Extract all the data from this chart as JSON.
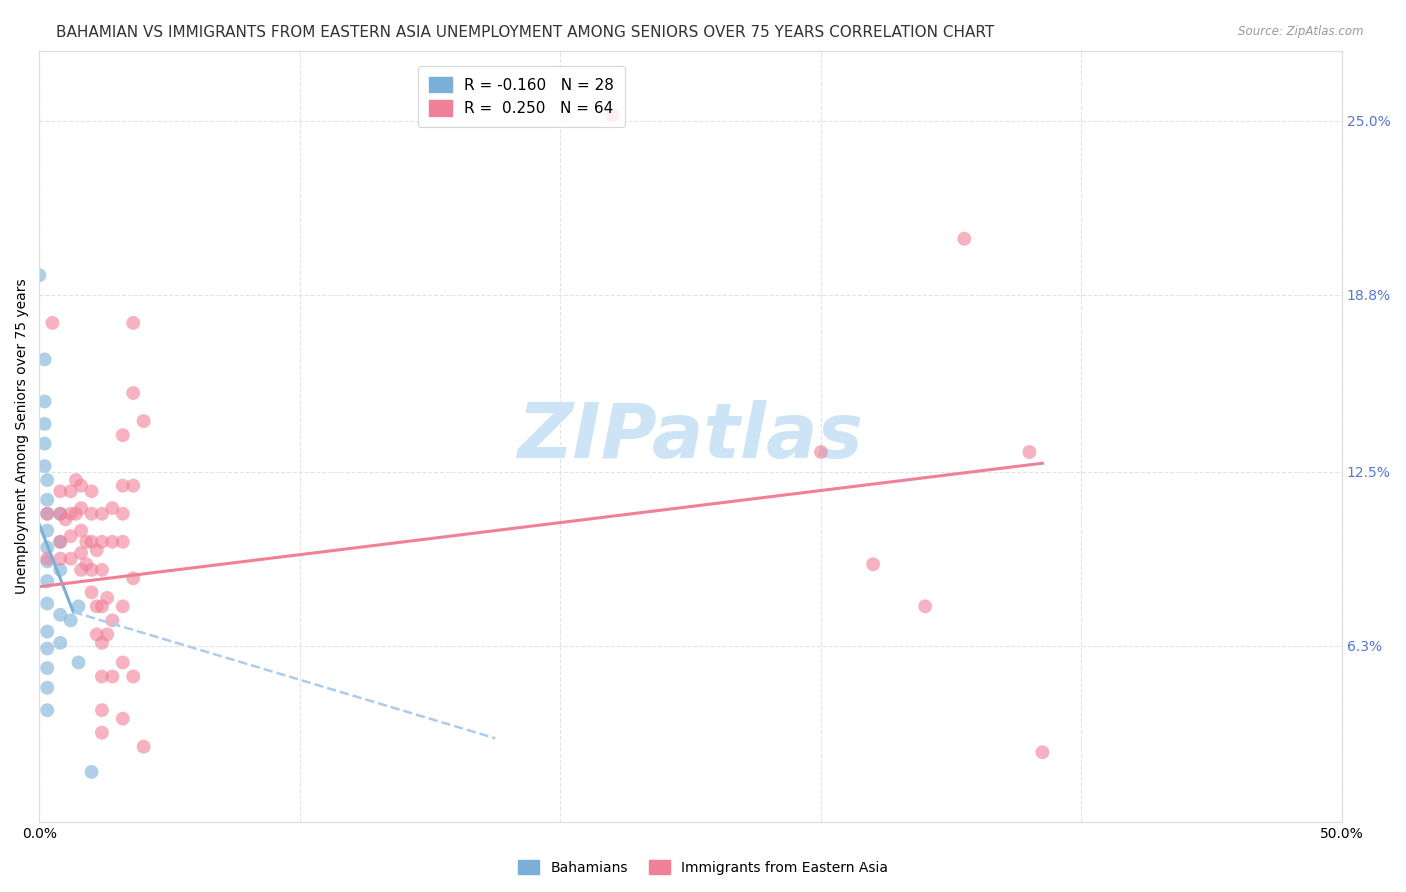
{
  "title": "BAHAMIAN VS IMMIGRANTS FROM EASTERN ASIA UNEMPLOYMENT AMONG SENIORS OVER 75 YEARS CORRELATION CHART",
  "source": "Source: ZipAtlas.com",
  "ylabel": "Unemployment Among Seniors over 75 years",
  "xlim": [
    0.0,
    0.5
  ],
  "ylim": [
    0.0,
    0.275
  ],
  "xticks": [
    0.0,
    0.1,
    0.2,
    0.3,
    0.4,
    0.5
  ],
  "xtick_labels": [
    "0.0%",
    "",
    "",
    "",
    "",
    "50.0%"
  ],
  "ytick_positions": [
    0.063,
    0.125,
    0.188,
    0.25
  ],
  "ytick_labels": [
    "6.3%",
    "12.5%",
    "18.8%",
    "25.0%"
  ],
  "bahamian_color": "#7ab0d8",
  "eastern_asia_color": "#f08098",
  "bahamian_scatter": [
    [
      0.0,
      0.195
    ],
    [
      0.002,
      0.165
    ],
    [
      0.002,
      0.15
    ],
    [
      0.002,
      0.142
    ],
    [
      0.002,
      0.135
    ],
    [
      0.002,
      0.127
    ],
    [
      0.003,
      0.122
    ],
    [
      0.003,
      0.115
    ],
    [
      0.003,
      0.11
    ],
    [
      0.003,
      0.104
    ],
    [
      0.003,
      0.098
    ],
    [
      0.003,
      0.093
    ],
    [
      0.003,
      0.086
    ],
    [
      0.003,
      0.078
    ],
    [
      0.003,
      0.068
    ],
    [
      0.003,
      0.062
    ],
    [
      0.003,
      0.055
    ],
    [
      0.003,
      0.048
    ],
    [
      0.003,
      0.04
    ],
    [
      0.008,
      0.11
    ],
    [
      0.008,
      0.1
    ],
    [
      0.008,
      0.09
    ],
    [
      0.008,
      0.074
    ],
    [
      0.008,
      0.064
    ],
    [
      0.012,
      0.072
    ],
    [
      0.015,
      0.077
    ],
    [
      0.015,
      0.057
    ],
    [
      0.02,
      0.018
    ]
  ],
  "eastern_asia_scatter": [
    [
      0.003,
      0.11
    ],
    [
      0.003,
      0.094
    ],
    [
      0.005,
      0.178
    ],
    [
      0.008,
      0.118
    ],
    [
      0.008,
      0.11
    ],
    [
      0.008,
      0.1
    ],
    [
      0.008,
      0.094
    ],
    [
      0.01,
      0.108
    ],
    [
      0.012,
      0.118
    ],
    [
      0.012,
      0.11
    ],
    [
      0.012,
      0.102
    ],
    [
      0.012,
      0.094
    ],
    [
      0.014,
      0.122
    ],
    [
      0.014,
      0.11
    ],
    [
      0.016,
      0.12
    ],
    [
      0.016,
      0.112
    ],
    [
      0.016,
      0.104
    ],
    [
      0.016,
      0.096
    ],
    [
      0.016,
      0.09
    ],
    [
      0.018,
      0.1
    ],
    [
      0.018,
      0.092
    ],
    [
      0.02,
      0.118
    ],
    [
      0.02,
      0.11
    ],
    [
      0.02,
      0.1
    ],
    [
      0.02,
      0.09
    ],
    [
      0.02,
      0.082
    ],
    [
      0.022,
      0.097
    ],
    [
      0.022,
      0.077
    ],
    [
      0.022,
      0.067
    ],
    [
      0.024,
      0.11
    ],
    [
      0.024,
      0.1
    ],
    [
      0.024,
      0.09
    ],
    [
      0.024,
      0.077
    ],
    [
      0.024,
      0.064
    ],
    [
      0.024,
      0.052
    ],
    [
      0.024,
      0.04
    ],
    [
      0.024,
      0.032
    ],
    [
      0.026,
      0.08
    ],
    [
      0.026,
      0.067
    ],
    [
      0.028,
      0.112
    ],
    [
      0.028,
      0.1
    ],
    [
      0.028,
      0.072
    ],
    [
      0.028,
      0.052
    ],
    [
      0.032,
      0.138
    ],
    [
      0.032,
      0.12
    ],
    [
      0.032,
      0.11
    ],
    [
      0.032,
      0.1
    ],
    [
      0.032,
      0.077
    ],
    [
      0.032,
      0.057
    ],
    [
      0.032,
      0.037
    ],
    [
      0.036,
      0.178
    ],
    [
      0.036,
      0.153
    ],
    [
      0.036,
      0.12
    ],
    [
      0.036,
      0.087
    ],
    [
      0.036,
      0.052
    ],
    [
      0.04,
      0.143
    ],
    [
      0.04,
      0.027
    ],
    [
      0.22,
      0.252
    ],
    [
      0.3,
      0.132
    ],
    [
      0.32,
      0.092
    ],
    [
      0.34,
      0.077
    ],
    [
      0.355,
      0.208
    ],
    [
      0.38,
      0.132
    ],
    [
      0.385,
      0.025
    ]
  ],
  "bahamian_trend_solid": {
    "x": [
      0.0,
      0.013
    ],
    "y": [
      0.106,
      0.075
    ]
  },
  "bahamian_trend_dashed": {
    "x": [
      0.013,
      0.175
    ],
    "y": [
      0.075,
      0.03
    ]
  },
  "eastern_asia_trend": {
    "x": [
      0.0,
      0.385
    ],
    "y": [
      0.084,
      0.128
    ]
  },
  "watermark": "ZIPatlas",
  "watermark_color": "#cce4f5",
  "background_color": "#ffffff",
  "grid_color": "#e0e0e0",
  "title_fontsize": 11,
  "axis_label_fontsize": 10,
  "tick_fontsize": 10,
  "scatter_size": 100,
  "right_tick_color": "#5577cc"
}
